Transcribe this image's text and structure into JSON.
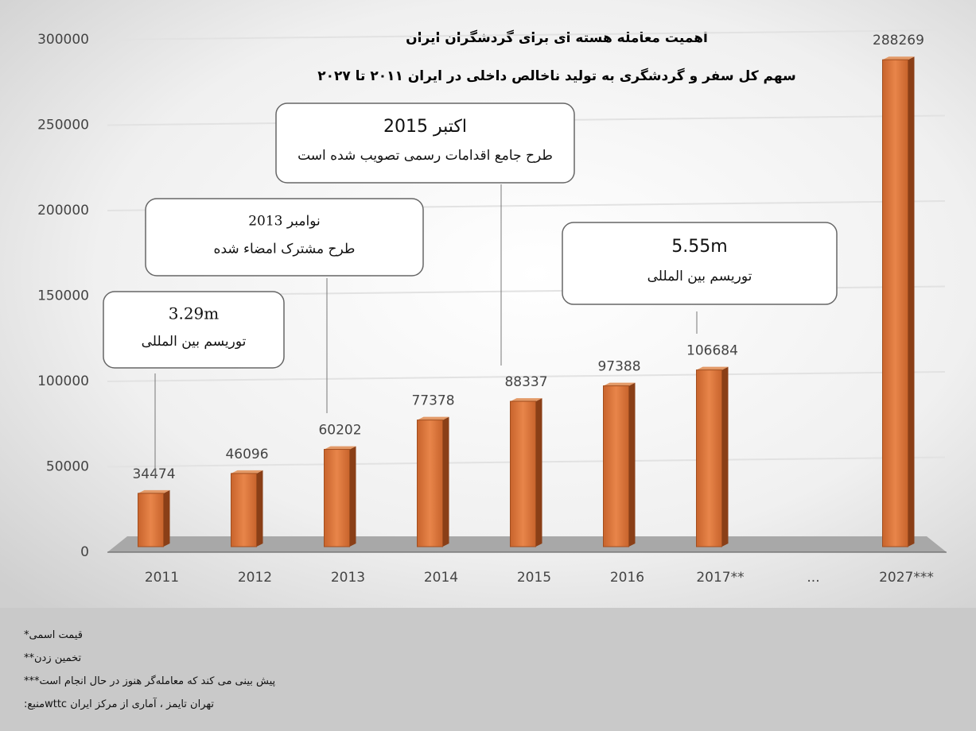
{
  "chart_data": {
    "type": "bar",
    "title": "اهمیت معامله هسته ای برای گردشگران ایران",
    "subtitle": "سهم کل سفر و گردشگری به تولید ناخالص داخلی در ایران ۲۰۱۱ تا ۲۰۲۷",
    "categories": [
      "2011",
      "2012",
      "2013",
      "2014",
      "2015",
      "2016",
      "2017**",
      "...",
      "2027***"
    ],
    "values": [
      34474,
      46096,
      60202,
      77378,
      88337,
      97388,
      106684,
      null,
      288269
    ],
    "color": "#d07338",
    "ylim": [
      0,
      300000
    ],
    "yticks": [
      0,
      50000,
      100000,
      150000,
      200000,
      250000,
      300000
    ],
    "grid": true,
    "annotations": [
      {
        "lines": [
          "3.29m",
          "توریسم بین المللی"
        ]
      },
      {
        "lines": [
          "نوامبر 2013",
          "طرح مشترک امضاء شده"
        ]
      },
      {
        "lines": [
          "اکتبر 2015",
          "طرح جامع اقدامات رسمی تصویب شده است"
        ]
      },
      {
        "lines": [
          "5.55m",
          "توریسم بین المللی"
        ]
      }
    ]
  },
  "footnotes": [
    "قیمت اسمی*",
    "تخمین زدن**",
    "پیش بینی می کند که معامله‌گر هنوز در حال انجام است***",
    "تهران تایمز ، آماری از مرکز ایران wttcمنبع:"
  ]
}
